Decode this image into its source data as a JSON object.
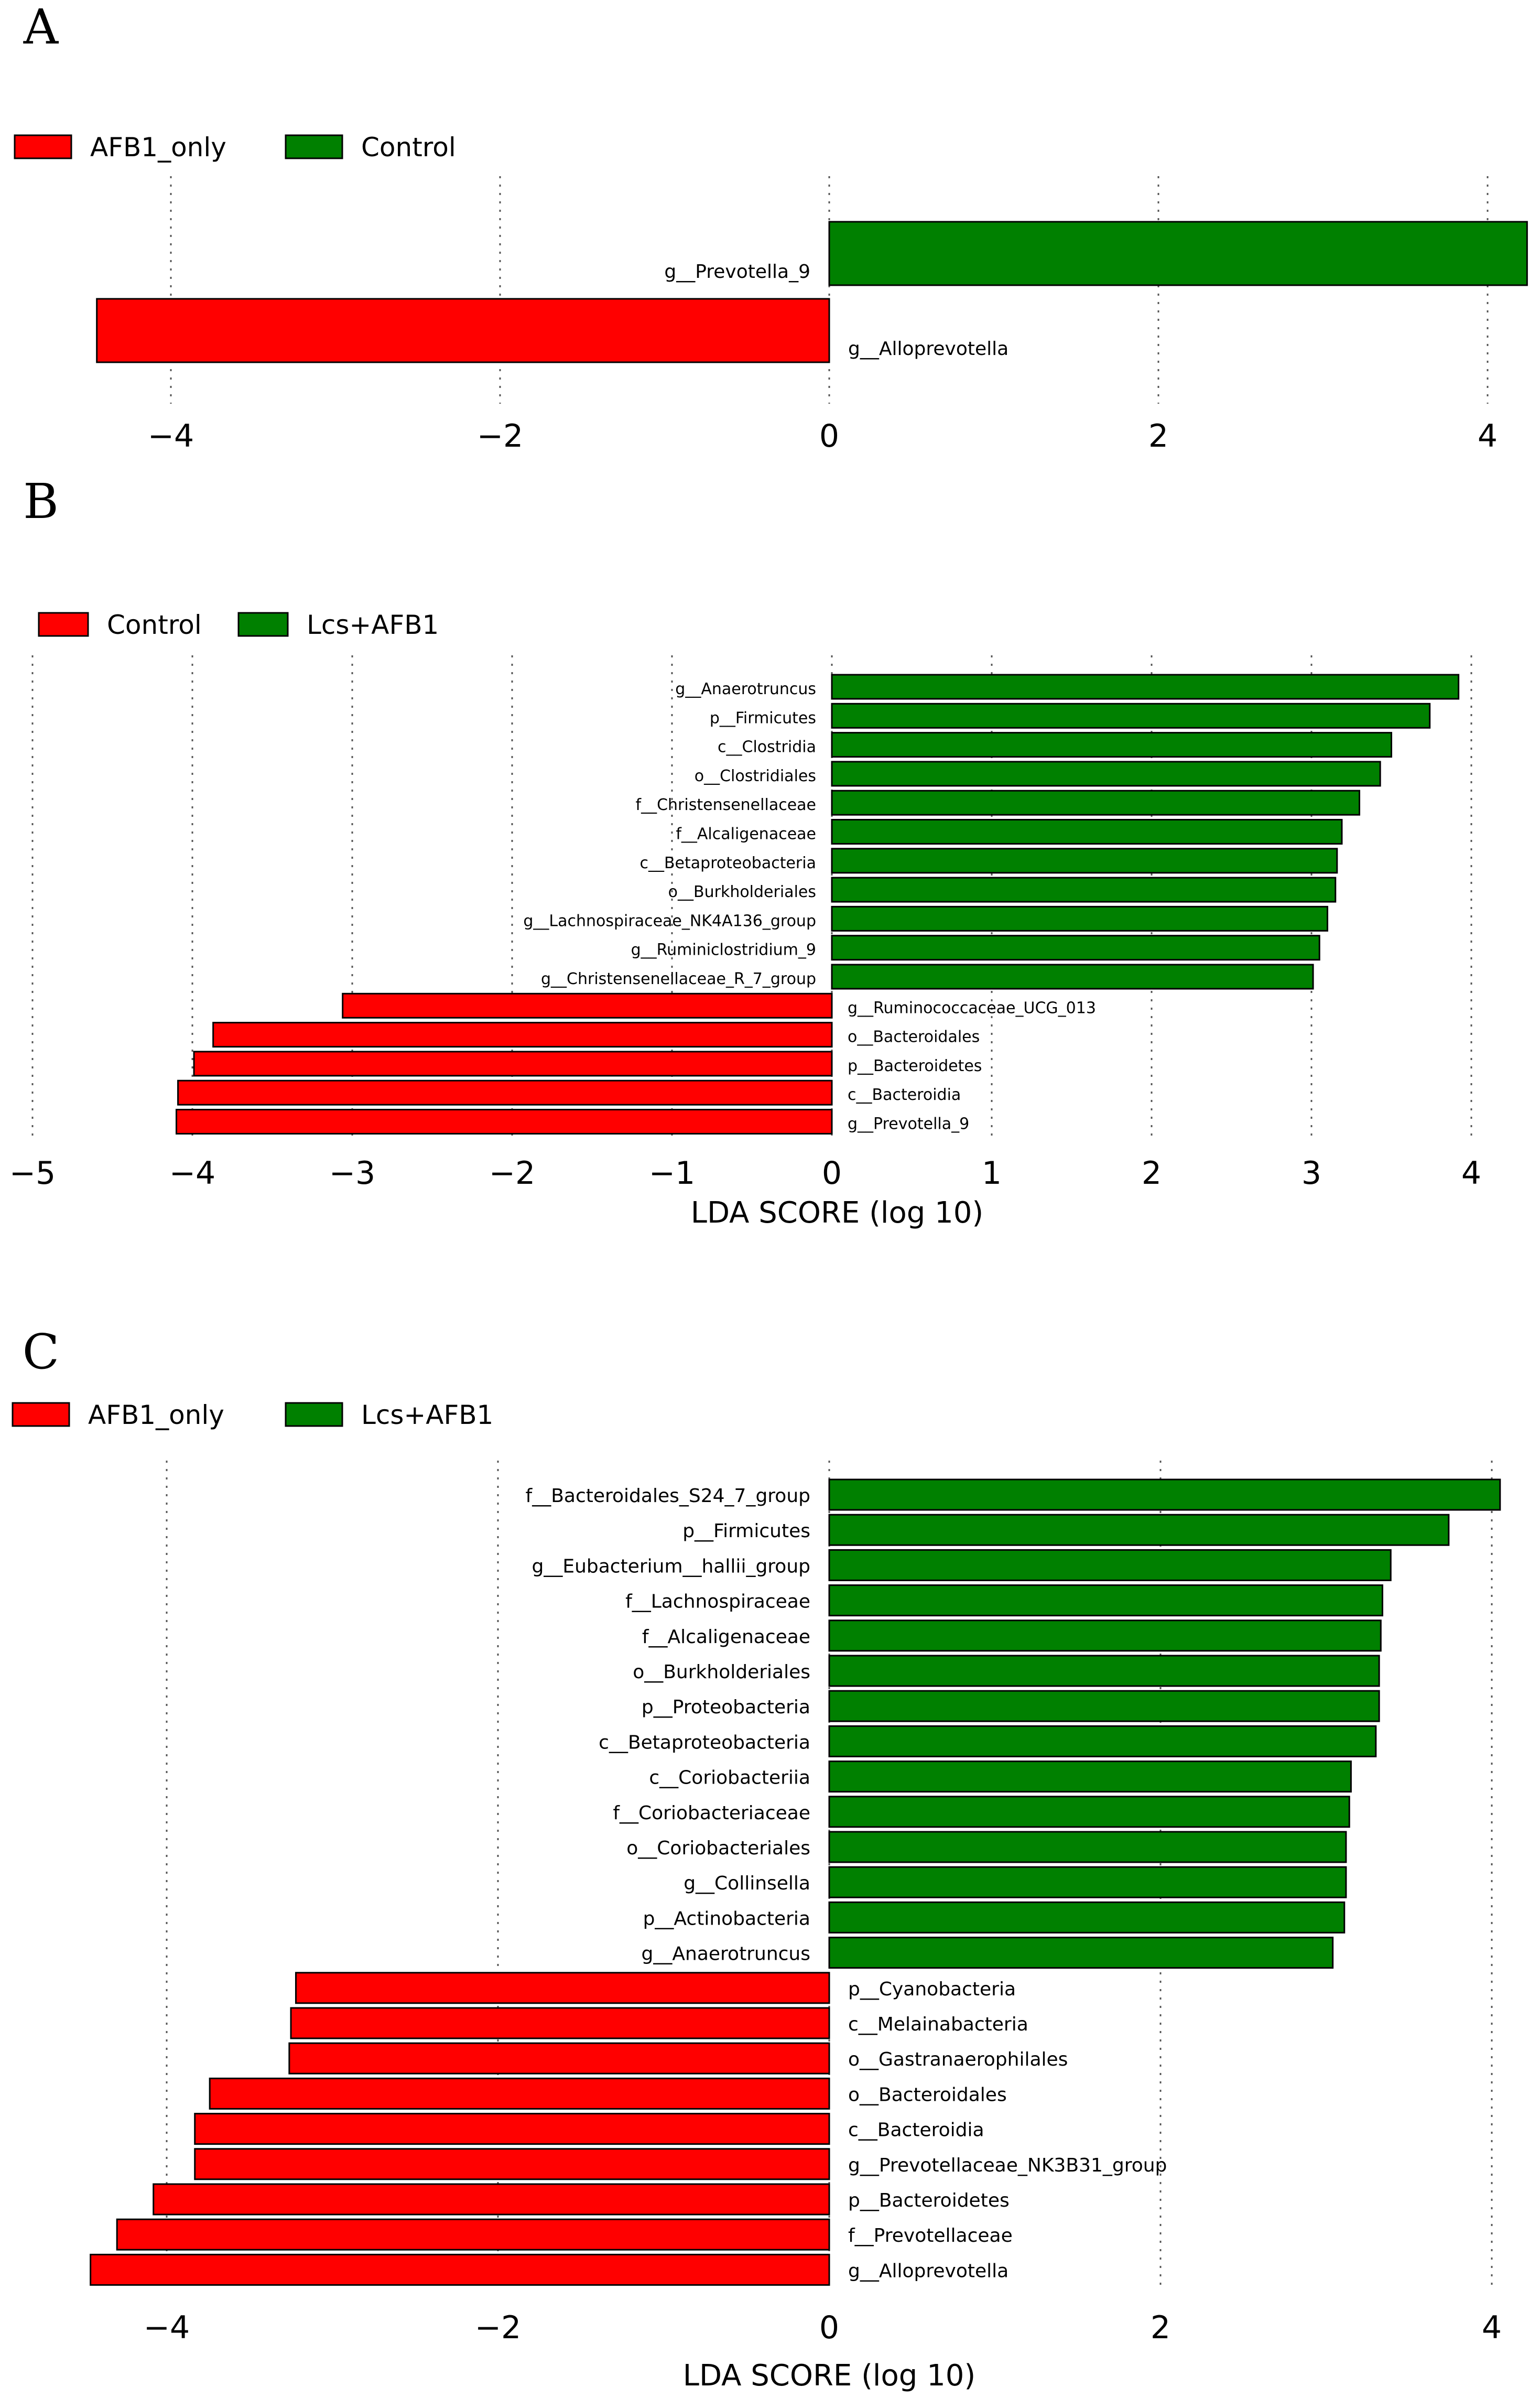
{
  "colors": {
    "negative": "#ff0000",
    "positive": "#008000"
  },
  "chart_data": [
    {
      "panel": "A",
      "type": "bar",
      "orientation": "horizontal",
      "legend": [
        "AFB1_only",
        "Control"
      ],
      "xticks": [
        -4,
        -2,
        0,
        2,
        4
      ],
      "xlim": [
        -4.5,
        4.25
      ],
      "xlabel": "",
      "bars": [
        {
          "label": "g__Prevotella_9",
          "value": 4.24
        },
        {
          "label": "g__Alloprevotella",
          "value": -4.45
        }
      ]
    },
    {
      "panel": "B",
      "type": "bar",
      "orientation": "horizontal",
      "legend": [
        "Control",
        "Lcs+AFB1"
      ],
      "xticks": [
        -5,
        -4,
        -3,
        -2,
        -1,
        0,
        1,
        2,
        3,
        4
      ],
      "xlim": [
        -5,
        4.4
      ],
      "xlabel": "LDA SCORE (log 10)",
      "bars": [
        {
          "label": "g__Anaerotruncus",
          "value": 3.92
        },
        {
          "label": "p__Firmicutes",
          "value": 3.74
        },
        {
          "label": "c__Clostridia",
          "value": 3.5
        },
        {
          "label": "o__Clostridiales",
          "value": 3.43
        },
        {
          "label": "f__Christensenellaceae",
          "value": 3.3
        },
        {
          "label": "f__Alcaligenaceae",
          "value": 3.19
        },
        {
          "label": "c__Betaproteobacteria",
          "value": 3.16
        },
        {
          "label": "o__Burkholderiales",
          "value": 3.15
        },
        {
          "label": "g__Lachnospiraceae_NK4A136_group",
          "value": 3.1
        },
        {
          "label": "g__Ruminiclostridium_9",
          "value": 3.05
        },
        {
          "label": "g__Christensenellaceae_R_7_group",
          "value": 3.01
        },
        {
          "label": "g__Ruminococcaceae_UCG_013",
          "value": -3.06
        },
        {
          "label": "o__Bacteroidales",
          "value": -3.87
        },
        {
          "label": "p__Bacteroidetes",
          "value": -3.99
        },
        {
          "label": "c__Bacteroidia",
          "value": -4.09
        },
        {
          "label": "g__Prevotella_9",
          "value": -4.1
        }
      ]
    },
    {
      "panel": "C",
      "type": "bar",
      "orientation": "horizontal",
      "legend": [
        "AFB1_only",
        "Lcs+AFB1"
      ],
      "xticks": [
        -4,
        -2,
        0,
        2,
        4
      ],
      "xlim": [
        -4.5,
        4.25
      ],
      "xlabel": "LDA SCORE (log 10)",
      "bars": [
        {
          "label": "f__Bacteroidales_S24_7_group",
          "value": 4.05
        },
        {
          "label": "p__Firmicutes",
          "value": 3.74
        },
        {
          "label": "g__Eubacterium__hallii_group",
          "value": 3.39
        },
        {
          "label": "f__Lachnospiraceae",
          "value": 3.34
        },
        {
          "label": "f__Alcaligenaceae",
          "value": 3.33
        },
        {
          "label": "o__Burkholderiales",
          "value": 3.32
        },
        {
          "label": "p__Proteobacteria",
          "value": 3.32
        },
        {
          "label": "c__Betaproteobacteria",
          "value": 3.3
        },
        {
          "label": "c__Coriobacteriia",
          "value": 3.15
        },
        {
          "label": "f__Coriobacteriaceae",
          "value": 3.14
        },
        {
          "label": "o__Coriobacteriales",
          "value": 3.12
        },
        {
          "label": "g__Collinsella",
          "value": 3.12
        },
        {
          "label": "p__Actinobacteria",
          "value": 3.11
        },
        {
          "label": "g__Anaerotruncus",
          "value": 3.04
        },
        {
          "label": "p__Cyanobacteria",
          "value": -3.22
        },
        {
          "label": "c__Melainabacteria",
          "value": -3.25
        },
        {
          "label": "o__Gastranaerophilales",
          "value": -3.26
        },
        {
          "label": "o__Bacteroidales",
          "value": -3.74
        },
        {
          "label": "c__Bacteroidia",
          "value": -3.83
        },
        {
          "label": "g__Prevotellaceae_NK3B31_group",
          "value": -3.83
        },
        {
          "label": "p__Bacteroidetes",
          "value": -4.08
        },
        {
          "label": "f__Prevotellaceae",
          "value": -4.3
        },
        {
          "label": "g__Alloprevotella",
          "value": -4.46
        }
      ]
    }
  ]
}
